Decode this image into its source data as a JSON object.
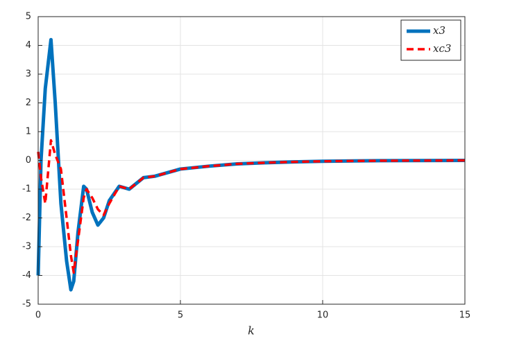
{
  "chart_data": {
    "type": "line",
    "x_label": "k",
    "x": [
      0,
      0.1,
      0.25,
      0.45,
      0.6,
      0.8,
      1.0,
      1.15,
      1.25,
      1.4,
      1.6,
      1.7,
      1.9,
      2.1,
      2.3,
      2.5,
      2.85,
      3.2,
      3.7,
      4.1,
      5,
      6,
      7,
      8,
      9,
      10,
      12,
      15
    ],
    "series": [
      {
        "name": "x3",
        "color": "#0072bd",
        "style": "solid",
        "values": [
          -4,
          0,
          2.5,
          4.2,
          2,
          -1.5,
          -3.5,
          -4.5,
          -4.2,
          -2.5,
          -0.9,
          -1.0,
          -1.8,
          -2.25,
          -2.0,
          -1.4,
          -0.9,
          -1.0,
          -0.6,
          -0.55,
          -0.3,
          -0.2,
          -0.12,
          -0.08,
          -0.05,
          -0.03,
          -0.01,
          0
        ]
      },
      {
        "name": "xc3",
        "color": "#ff0000",
        "style": "dashed",
        "values": [
          0.3,
          -0.6,
          -1.5,
          0.7,
          0.2,
          -0.3,
          -2.0,
          -3.3,
          -3.9,
          -2.8,
          -1.3,
          -1.0,
          -1.3,
          -1.7,
          -1.9,
          -1.5,
          -0.9,
          -1.0,
          -0.6,
          -0.55,
          -0.3,
          -0.2,
          -0.12,
          -0.08,
          -0.05,
          -0.03,
          -0.01,
          0
        ]
      }
    ],
    "xlim": [
      0,
      15
    ],
    "xticks": [
      0,
      5,
      10,
      15
    ],
    "ylim": [
      -5,
      5
    ],
    "yticks": [
      -5,
      -4,
      -3,
      -2,
      -1,
      0,
      1,
      2,
      3,
      4,
      5
    ],
    "grid": true,
    "legend": "top-right"
  }
}
